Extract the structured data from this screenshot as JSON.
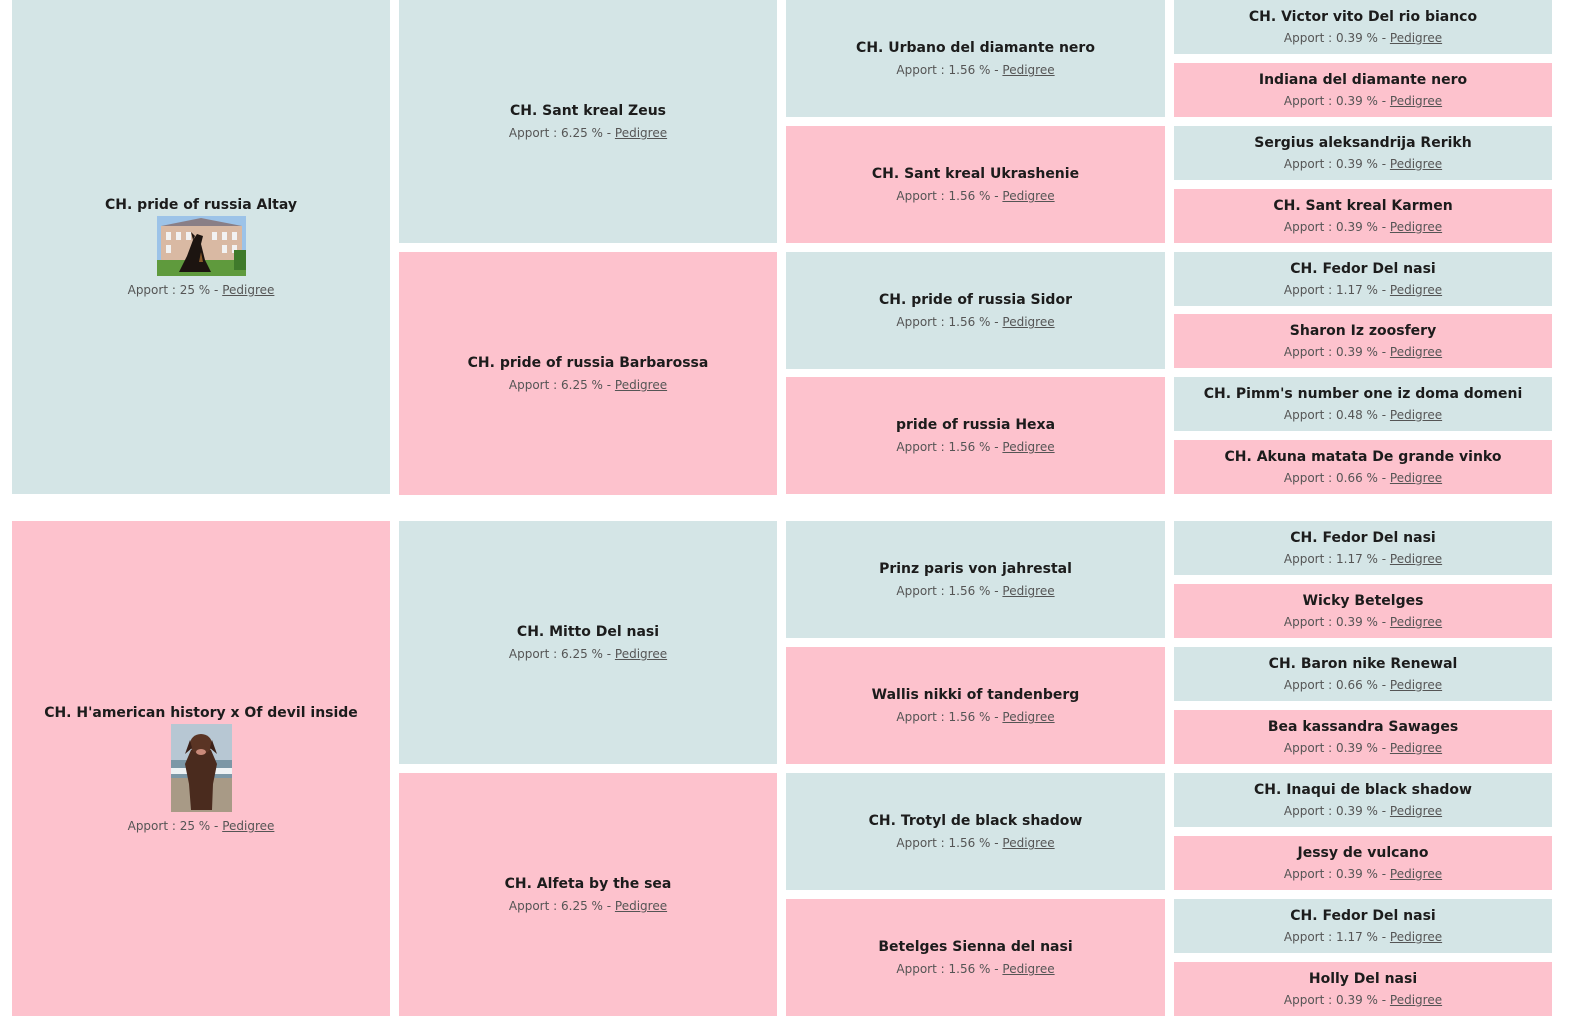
{
  "apport_label": "Apport :",
  "pedigree_label": "Pedigree",
  "col1": [
    {
      "name": "CH. pride of russia Altay",
      "pct": "25 %",
      "sex": "m",
      "photo": "dog-castle-photo"
    },
    {
      "name": "CH. H'american history x Of devil inside",
      "pct": "25 %",
      "sex": "f",
      "photo": "dog-beach-photo"
    }
  ],
  "col2": [
    {
      "name": "CH. Sant kreal Zeus",
      "pct": "6.25 %",
      "sex": "m"
    },
    {
      "name": "CH. pride of russia Barbarossa",
      "pct": "6.25 %",
      "sex": "f"
    },
    {
      "name": "CH. Mitto Del nasi",
      "pct": "6.25 %",
      "sex": "m"
    },
    {
      "name": "CH. Alfeta by the sea",
      "pct": "6.25 %",
      "sex": "f"
    }
  ],
  "col3": [
    {
      "name": "CH. Urbano del diamante nero",
      "pct": "1.56 %",
      "sex": "m"
    },
    {
      "name": "CH. Sant kreal Ukrashenie",
      "pct": "1.56 %",
      "sex": "f"
    },
    {
      "name": "CH. pride of russia Sidor",
      "pct": "1.56 %",
      "sex": "m"
    },
    {
      "name": "pride of russia Hexa",
      "pct": "1.56 %",
      "sex": "f"
    },
    {
      "name": "Prinz paris von jahrestal",
      "pct": "1.56 %",
      "sex": "m"
    },
    {
      "name": "Wallis nikki of tandenberg",
      "pct": "1.56 %",
      "sex": "f"
    },
    {
      "name": "CH. Trotyl de black shadow",
      "pct": "1.56 %",
      "sex": "m"
    },
    {
      "name": "Betelges Sienna del nasi",
      "pct": "1.56 %",
      "sex": "f"
    }
  ],
  "col4": [
    {
      "name": "CH. Victor vito Del rio bianco",
      "pct": "0.39 %",
      "sex": "m"
    },
    {
      "name": "Indiana del diamante nero",
      "pct": "0.39 %",
      "sex": "f"
    },
    {
      "name": "Sergius aleksandrija Rerikh",
      "pct": "0.39 %",
      "sex": "m"
    },
    {
      "name": "CH. Sant kreal Karmen",
      "pct": "0.39 %",
      "sex": "f"
    },
    {
      "name": "CH. Fedor Del nasi",
      "pct": "1.17 %",
      "sex": "m"
    },
    {
      "name": "Sharon Iz zoosfery",
      "pct": "0.39 %",
      "sex": "f"
    },
    {
      "name": "CH. Pimm's number one iz doma domeni",
      "pct": "0.48 %",
      "sex": "m"
    },
    {
      "name": "CH. Akuna matata De grande vinko",
      "pct": "0.66 %",
      "sex": "f"
    },
    {
      "name": "CH. Fedor Del nasi",
      "pct": "1.17 %",
      "sex": "m"
    },
    {
      "name": "Wicky Betelges",
      "pct": "0.39 %",
      "sex": "f"
    },
    {
      "name": "CH. Baron nike Renewal",
      "pct": "0.66 %",
      "sex": "m"
    },
    {
      "name": "Bea kassandra Sawages",
      "pct": "0.39 %",
      "sex": "f"
    },
    {
      "name": "CH. Inaqui de black shadow",
      "pct": "0.39 %",
      "sex": "m"
    },
    {
      "name": "Jessy de vulcano",
      "pct": "0.39 %",
      "sex": "f"
    },
    {
      "name": "CH. Fedor Del nasi",
      "pct": "1.17 %",
      "sex": "m"
    },
    {
      "name": "Holly Del nasi",
      "pct": "0.39 %",
      "sex": "f"
    }
  ],
  "colors": {
    "male": "#d4e5e6",
    "female": "#fdc2cd"
  }
}
